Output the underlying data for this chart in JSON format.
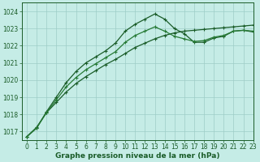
{
  "title": "Graphe pression niveau de la mer (hPa)",
  "bg_color": "#c5ece6",
  "grid_color": "#9ecdc7",
  "line_color_dark": "#1a5c28",
  "line_color_mid": "#267a35",
  "xlim": [
    -0.5,
    23
  ],
  "ylim": [
    1016.5,
    1024.5
  ],
  "yticks": [
    1017,
    1018,
    1019,
    1020,
    1021,
    1022,
    1023,
    1024
  ],
  "xticks": [
    0,
    1,
    2,
    3,
    4,
    5,
    6,
    7,
    8,
    9,
    10,
    11,
    12,
    13,
    14,
    15,
    16,
    17,
    18,
    19,
    20,
    21,
    22,
    23
  ],
  "series_curved": [
    1016.7,
    1017.2,
    1018.15,
    1019.0,
    1019.85,
    1020.5,
    1021.0,
    1021.35,
    1021.7,
    1022.15,
    1022.85,
    1023.25,
    1023.55,
    1023.85,
    1023.55,
    1023.0,
    1022.7,
    1022.2,
    1022.2,
    1022.45,
    1022.55,
    1022.85,
    1022.9,
    1022.8
  ],
  "series_straight": [
    1016.7,
    1017.25,
    1018.1,
    1018.7,
    1019.3,
    1019.8,
    1020.2,
    1020.55,
    1020.9,
    1021.2,
    1021.55,
    1021.9,
    1022.15,
    1022.4,
    1022.6,
    1022.75,
    1022.85,
    1022.9,
    1022.95,
    1023.0,
    1023.05,
    1023.1,
    1023.15,
    1023.2
  ],
  "series_mid": [
    1016.7,
    1017.2,
    1018.1,
    1018.85,
    1019.6,
    1020.15,
    1020.6,
    1020.95,
    1021.3,
    1021.65,
    1022.2,
    1022.6,
    1022.85,
    1023.1,
    1022.85,
    1022.55,
    1022.4,
    1022.25,
    1022.3,
    1022.5,
    1022.6,
    1022.85,
    1022.9,
    1022.85
  ],
  "tick_fontsize": 5.5,
  "title_fontsize": 6.5
}
